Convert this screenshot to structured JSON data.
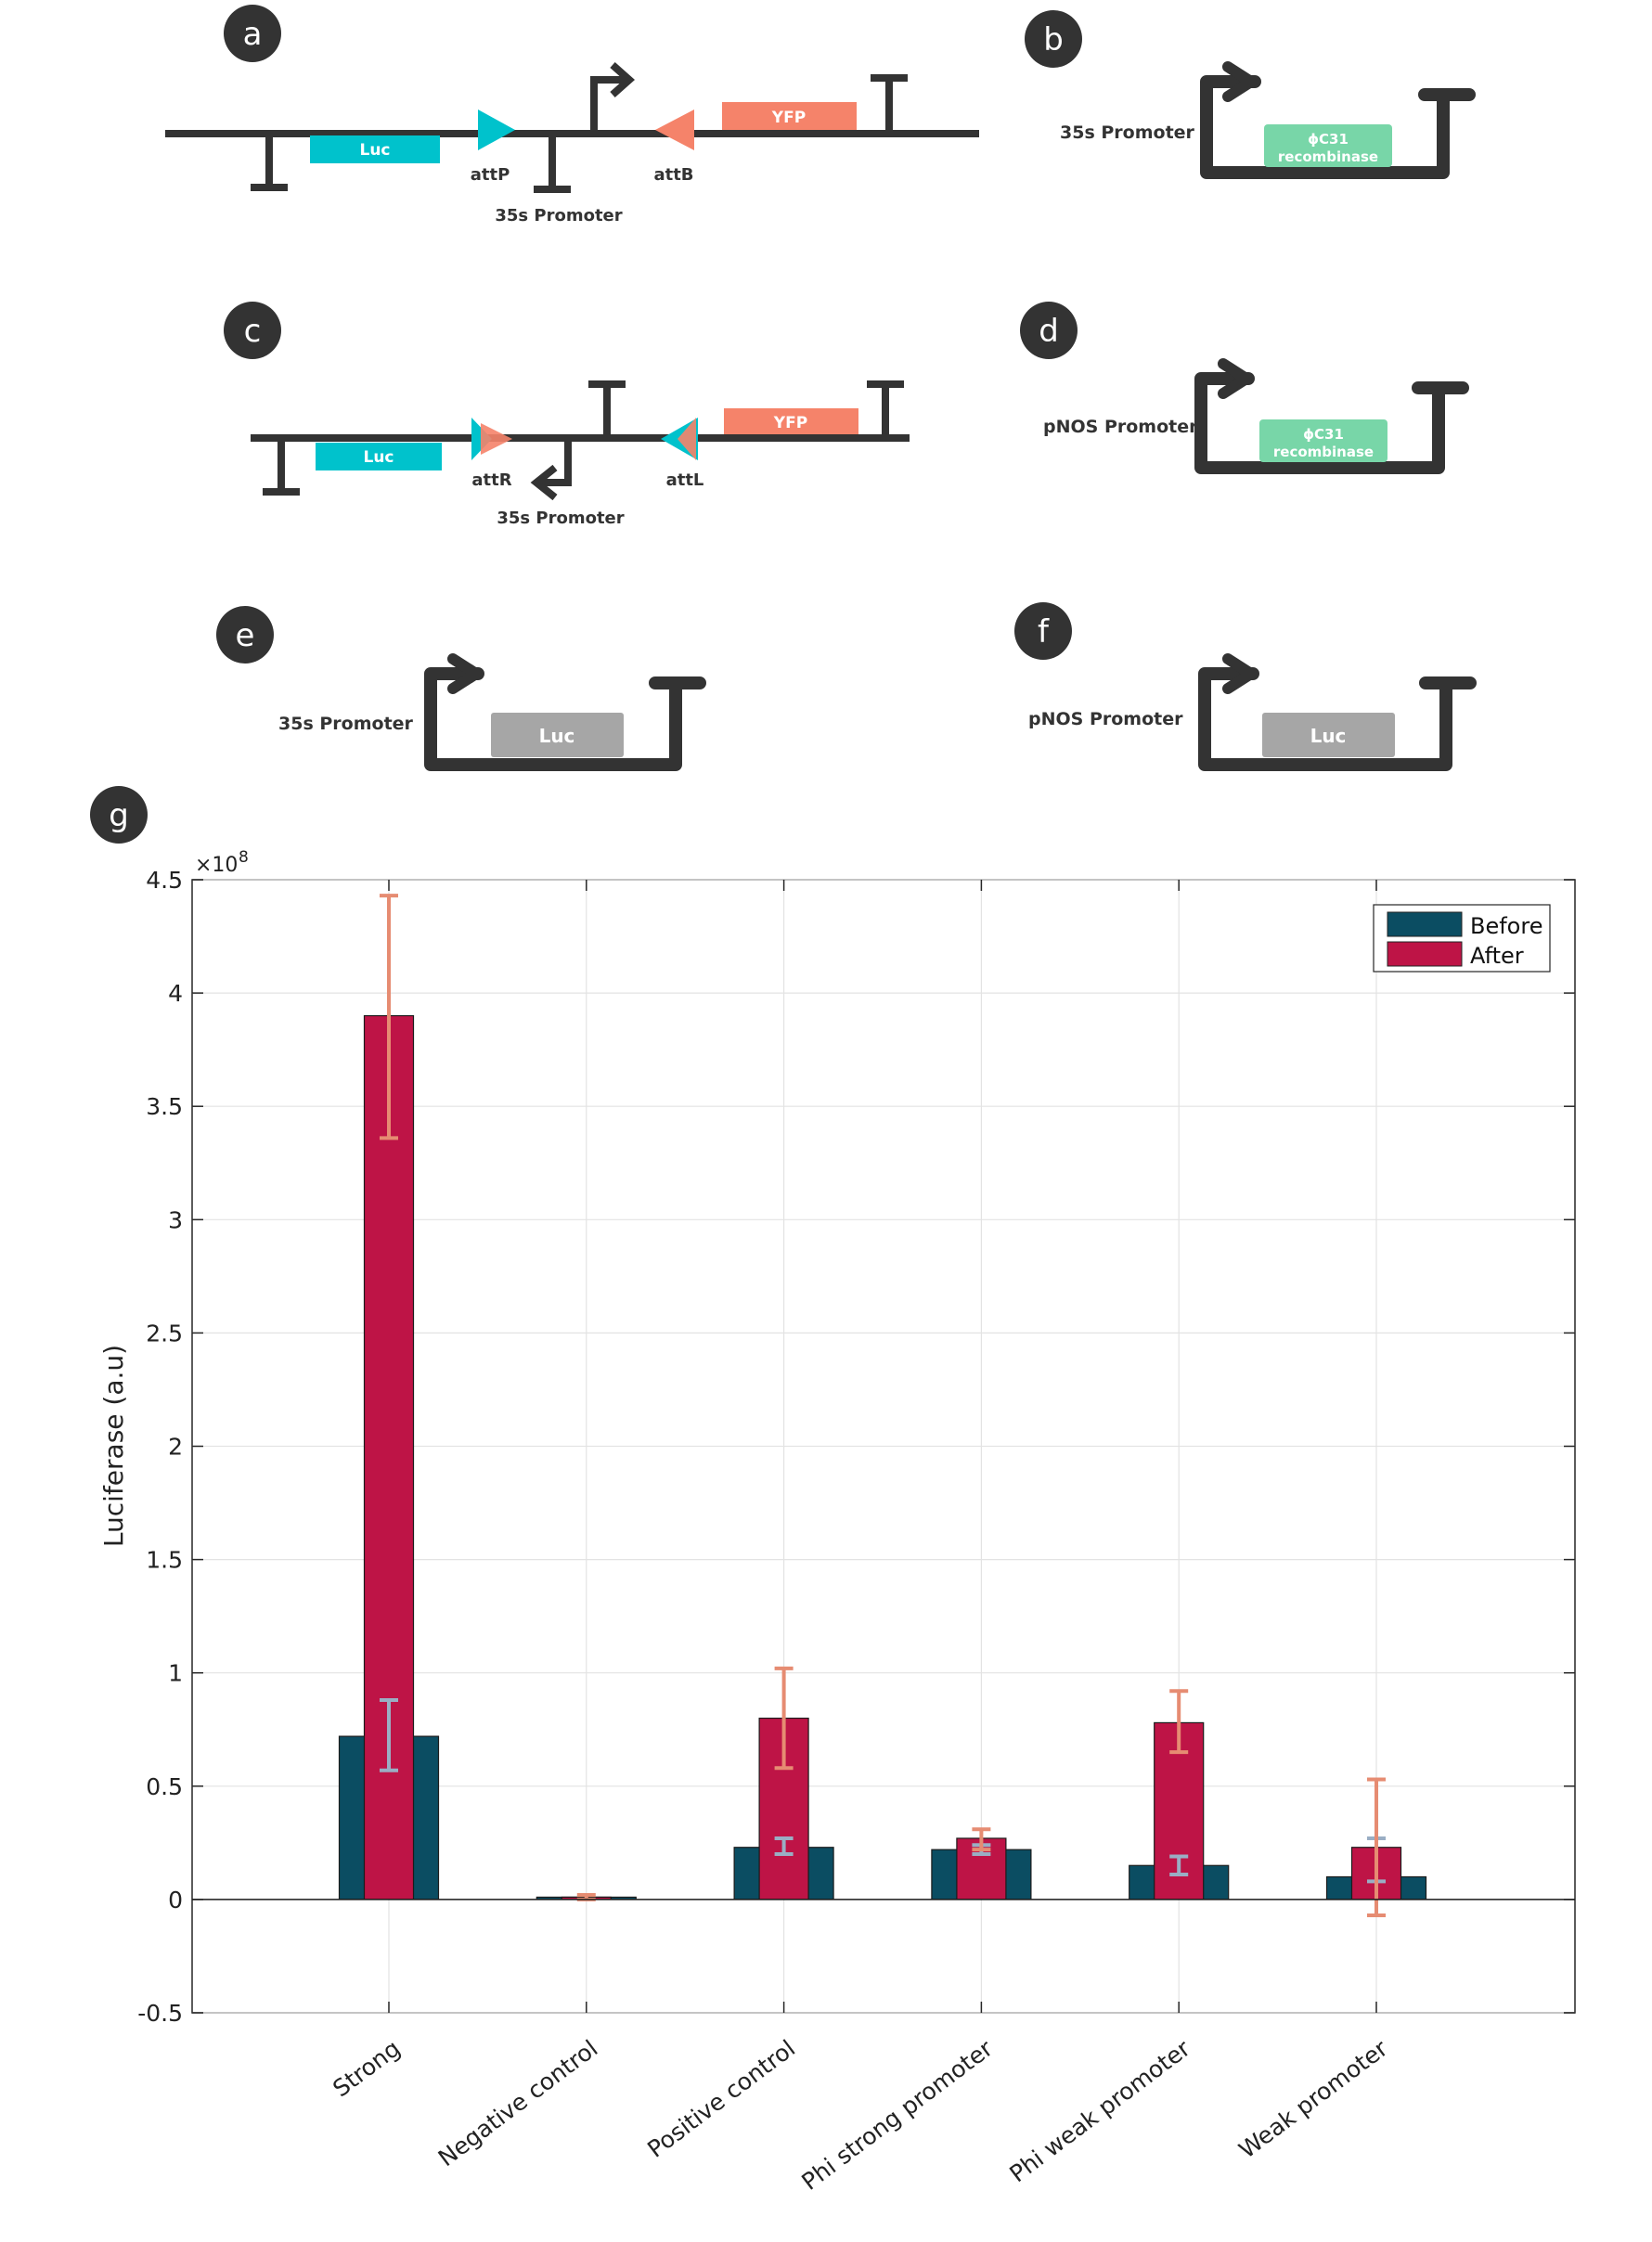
{
  "colors": {
    "dark": "#333333",
    "cyan": "#00c2cc",
    "salmon": "#f5836a",
    "green": "#78d6a8",
    "gray_box": "#a6a6a6",
    "before": "#0b4d62",
    "after": "#be1446",
    "err_before": "#9aaec4",
    "err_after": "#e68c72"
  },
  "panels": {
    "a": {
      "badge": "a",
      "luc": "Luc",
      "yfp": "YFP",
      "attP": "attP",
      "attB": "attB",
      "promoter": "35s Promoter"
    },
    "b": {
      "badge": "b",
      "promoter": "35s Promoter",
      "gene_line1": "ϕC31",
      "gene_line2": "recombinase"
    },
    "c": {
      "badge": "c",
      "luc": "Luc",
      "yfp": "YFP",
      "attR": "attR",
      "attL": "attL",
      "promoter": "35s Promoter"
    },
    "d": {
      "badge": "d",
      "promoter": "pNOS Promoter",
      "gene_line1": "ϕC31",
      "gene_line2": "recombinase"
    },
    "e": {
      "badge": "e",
      "promoter": "35s Promoter",
      "gene": "Luc"
    },
    "f": {
      "badge": "f",
      "promoter": "pNOS Promoter",
      "gene": "Luc"
    },
    "g": {
      "badge": "g"
    }
  },
  "chart_data": {
    "type": "bar",
    "title": "",
    "xlabel": "",
    "ylabel": "Luciferase (a.u)",
    "exponent_base": "×10",
    "exponent_power": "8",
    "ylim": [
      -0.5,
      4.5
    ],
    "yticks": [
      -0.5,
      0,
      0.5,
      1,
      1.5,
      2,
      2.5,
      3,
      3.5,
      4,
      4.5
    ],
    "ytick_labels": [
      "-0.5",
      "0",
      "0.5",
      "1",
      "1.5",
      "2",
      "2.5",
      "3",
      "3.5",
      "4",
      "4.5"
    ],
    "grid": true,
    "legend_position": "top-right",
    "categories": [
      "Strong",
      "Negative control",
      "Positive control",
      "Phi strong promoter",
      "Phi weak promoter",
      "Weak promoter"
    ],
    "series": [
      {
        "name": "Before",
        "values": [
          0.72,
          0.005,
          0.23,
          0.22,
          0.15,
          0.1
        ],
        "err_low": [
          0.57,
          0.0,
          0.2,
          0.2,
          0.11,
          0.08
        ],
        "err_high": [
          0.88,
          0.01,
          0.27,
          0.24,
          0.19,
          0.27
        ]
      },
      {
        "name": "After",
        "values": [
          3.9,
          0.01,
          0.8,
          0.27,
          0.78,
          0.23
        ],
        "err_low": [
          3.36,
          0.0,
          0.58,
          0.22,
          0.65,
          -0.07
        ],
        "err_high": [
          4.43,
          0.02,
          1.02,
          0.31,
          0.92,
          0.53
        ]
      }
    ]
  }
}
